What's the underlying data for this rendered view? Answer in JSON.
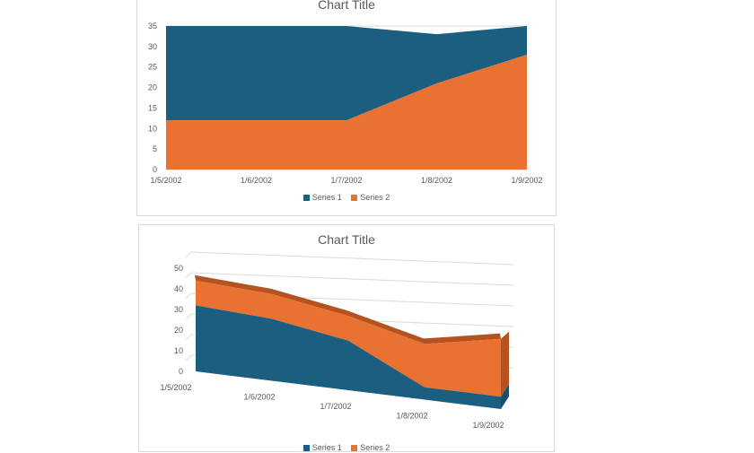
{
  "colors": {
    "series1": "#1b5e80",
    "series2": "#e97132",
    "series1_side": "#16506e",
    "series2_top": "#b5521f",
    "grid": "#d9d9d9",
    "text": "#595959"
  },
  "chart_data": [
    {
      "type": "area",
      "variant": "stacked-area-2d",
      "title": "Chart Title",
      "categories": [
        "1/5/2002",
        "1/6/2002",
        "1/7/2002",
        "1/8/2002",
        "1/9/2002"
      ],
      "series": [
        {
          "name": "Series 1",
          "values": [
            32,
            32,
            28,
            12,
            12
          ]
        },
        {
          "name": "Series 2",
          "values": [
            12,
            12,
            12,
            21,
            28
          ]
        }
      ],
      "ylim": [
        0,
        35
      ],
      "yticks": [
        0,
        5,
        10,
        15,
        20,
        25,
        30,
        35
      ],
      "grid": true,
      "legend": "bottom"
    },
    {
      "type": "area",
      "variant": "stacked-area-3d",
      "title": "Chart Title",
      "categories": [
        "1/5/2002",
        "1/6/2002",
        "1/7/2002",
        "1/8/2002",
        "1/9/2002"
      ],
      "series": [
        {
          "name": "Series 1",
          "values": [
            32,
            30,
            24,
            6,
            6
          ]
        },
        {
          "name": "Series 2",
          "values": [
            12,
            12,
            12,
            21,
            28
          ]
        }
      ],
      "ylim": [
        0,
        50
      ],
      "yticks": [
        0,
        10,
        20,
        30,
        40,
        50
      ],
      "grid": true,
      "legend": "bottom"
    }
  ]
}
